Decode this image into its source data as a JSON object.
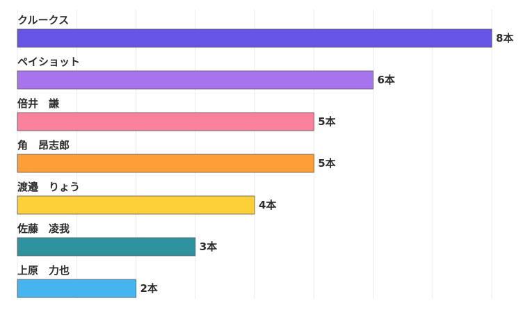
{
  "chart_data": {
    "type": "bar",
    "orientation": "horizontal",
    "categories": [
      "クルークス",
      "ペイショット",
      "倍井　謙",
      "角　昂志郎",
      "渡邉　りょう",
      "佐藤　凌我",
      "上原　力也"
    ],
    "values": [
      8,
      6,
      5,
      5,
      4,
      3,
      2
    ],
    "value_suffix": "本",
    "colors": [
      "#6655e6",
      "#a874ee",
      "#fb829d",
      "#fd9e38",
      "#fdd03a",
      "#2f939f",
      "#46b4ef"
    ],
    "xlim": [
      0,
      8.4
    ],
    "grid": true,
    "legend": "none",
    "title": "",
    "xlabel": "",
    "ylabel": ""
  }
}
